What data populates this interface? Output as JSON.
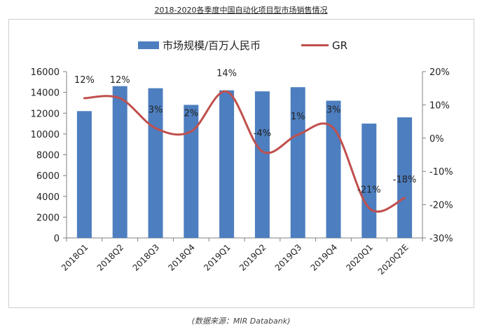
{
  "title": "2018-2020各季度中国自动化项目型市场销售情况",
  "source": "(数据来源：MIR Databank)",
  "colors": {
    "bar": "#4d7ebf",
    "line": "#c0504d",
    "axis": "#808080"
  },
  "chart_data": {
    "type": "bar",
    "categories": [
      "2018Q1",
      "2018Q2",
      "2018Q3",
      "2018Q4",
      "2019Q1",
      "2019Q2",
      "2019Q3",
      "2019Q4",
      "2020Q1",
      "2020Q2E"
    ],
    "series": [
      {
        "name": "市场规模/百万人民币",
        "type": "bar",
        "axis": "left",
        "values": [
          12200,
          14600,
          14400,
          12800,
          14200,
          14100,
          14500,
          13200,
          11000,
          11600
        ]
      },
      {
        "name": "GR",
        "type": "line",
        "axis": "right",
        "values": [
          12,
          12,
          3,
          2,
          14,
          -4,
          1,
          3,
          -21,
          -18
        ],
        "labels": [
          "12%",
          "12%",
          "3%",
          "2%",
          "14%",
          "-4%",
          "1%",
          "3%",
          "-21%",
          "-18%"
        ]
      }
    ],
    "y_left": {
      "min": 0,
      "max": 16000,
      "ticks": [
        "0",
        "2000",
        "4000",
        "6000",
        "8000",
        "10000",
        "12000",
        "14000",
        "16000"
      ]
    },
    "y_right": {
      "min": -30,
      "max": 20,
      "ticks": [
        "-30%",
        "-20%",
        "-10%",
        "0%",
        "10%",
        "20%"
      ]
    },
    "legend": "top",
    "grid": false
  }
}
